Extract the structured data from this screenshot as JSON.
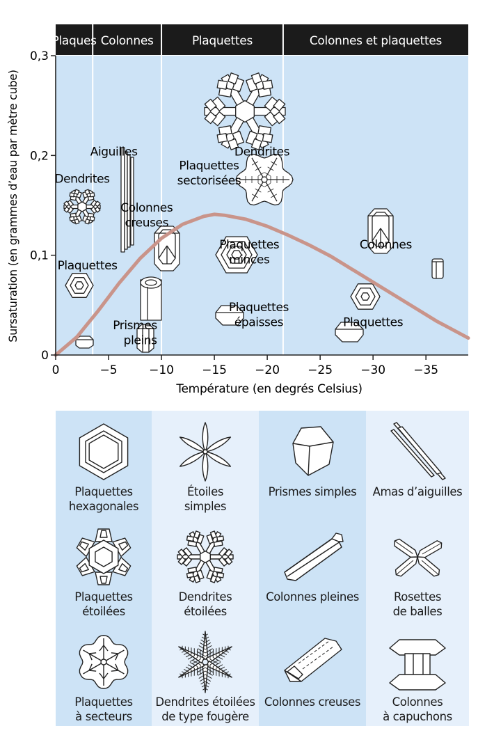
{
  "chart_data": {
    "type": "line",
    "title": "",
    "xlabel": "Température (en degrés Celsius)",
    "ylabel": "Sursaturation (en grammes d’eau par mètre cube)",
    "xlim": [
      0,
      -39
    ],
    "ylim": [
      0,
      0.3
    ],
    "x_ticks": [
      "0",
      "−5",
      "−10",
      "−15",
      "−20",
      "−25",
      "−30",
      "−35"
    ],
    "x_tick_values": [
      0,
      -5,
      -10,
      -15,
      -20,
      -25,
      -30,
      -35
    ],
    "y_ticks": [
      "0",
      "0,1",
      "0,2",
      "0,3"
    ],
    "y_tick_values": [
      0,
      0.1,
      0.2,
      0.3
    ],
    "curve_color": "#c9948a",
    "background_color": "#cde3f6",
    "series": [
      {
        "x": [
          0,
          -2,
          -4,
          -6,
          -8,
          -10,
          -12,
          -14,
          -15,
          -16,
          -18,
          -20,
          -22,
          -24,
          -26,
          -28,
          -30,
          -32,
          -34,
          -36,
          -39
        ],
        "values": [
          0,
          0.018,
          0.044,
          0.072,
          0.097,
          0.117,
          0.131,
          0.139,
          0.141,
          0.14,
          0.136,
          0.129,
          0.12,
          0.11,
          0.099,
          0.086,
          0.073,
          0.06,
          0.047,
          0.034,
          0.017
        ]
      }
    ],
    "bands": [
      {
        "label": "Plaques",
        "from": 0,
        "to": -3.5
      },
      {
        "label": "Colonnes",
        "from": -3.5,
        "to": -10
      },
      {
        "label": "Plaquettes",
        "from": -10,
        "to": -21.5
      },
      {
        "label": "Colonnes et plaquettes",
        "from": -21.5,
        "to": -39
      }
    ],
    "annotations": [
      {
        "text": "Dendrites",
        "x": -19.5,
        "y": 0.204
      },
      {
        "text": "Aiguilles",
        "x": -5.5,
        "y": 0.204
      },
      {
        "text": "Dendrites",
        "x": -2.5,
        "y": 0.177
      },
      {
        "text": "Plaquettes",
        "x": -14.5,
        "y": 0.19
      },
      {
        "text": "sectorisées",
        "x": -14.5,
        "y": 0.175
      },
      {
        "text": "Colonnes",
        "x": -8.6,
        "y": 0.148
      },
      {
        "text": "creuses",
        "x": -8.6,
        "y": 0.133
      },
      {
        "text": "Colonnes",
        "x": -31.2,
        "y": 0.111
      },
      {
        "text": "Plaquettes",
        "x": -18.3,
        "y": 0.111
      },
      {
        "text": "minces",
        "x": -18.3,
        "y": 0.096
      },
      {
        "text": "Plaquettes",
        "x": -3,
        "y": 0.09
      },
      {
        "text": "Plaquettes",
        "x": -19.2,
        "y": 0.048
      },
      {
        "text": "épaisses",
        "x": -19.2,
        "y": 0.033
      },
      {
        "text": "Plaquettes",
        "x": -30,
        "y": 0.033
      },
      {
        "text": "Prismes",
        "x": -7.5,
        "y": 0.03
      },
      {
        "text": "pleins",
        "x": -8,
        "y": 0.015
      }
    ]
  },
  "gallery": [
    {
      "label": [
        "Plaquettes",
        "hexagonales"
      ],
      "icon": "hexagonal-plate-icon"
    },
    {
      "label": [
        "Plaquettes",
        "étoilées"
      ],
      "icon": "stellar-plate-icon"
    },
    {
      "label": [
        "Plaquettes",
        "à secteurs"
      ],
      "icon": "sectored-plate-icon"
    },
    {
      "label": [
        "Étoiles",
        "simples"
      ],
      "icon": "simple-star-icon"
    },
    {
      "label": [
        "Dendrites",
        "étoilées"
      ],
      "icon": "stellar-dendrite-icon"
    },
    {
      "label": [
        "Dendrites étoilées",
        "de type fougère"
      ],
      "icon": "fernlike-dendrite-icon"
    },
    {
      "label": [
        "Prismes simples"
      ],
      "icon": "simple-prism-icon"
    },
    {
      "label": [
        "Colonnes pleines"
      ],
      "icon": "solid-column-icon"
    },
    {
      "label": [
        "Colonnes creuses"
      ],
      "icon": "hollow-column-icon"
    },
    {
      "label": [
        "Amas d’aiguilles"
      ],
      "icon": "needle-cluster-icon"
    },
    {
      "label": [
        "Rosettes",
        "de balles"
      ],
      "icon": "bullet-rosette-icon"
    },
    {
      "label": [
        "Colonnes",
        "à capuchons"
      ],
      "icon": "capped-column-icon"
    }
  ],
  "colors": {
    "band_header": "#1b1b1b",
    "gallery_dark": "#cde3f6",
    "gallery_light": "#e6f0fb",
    "crystal_stroke": "#222222"
  }
}
